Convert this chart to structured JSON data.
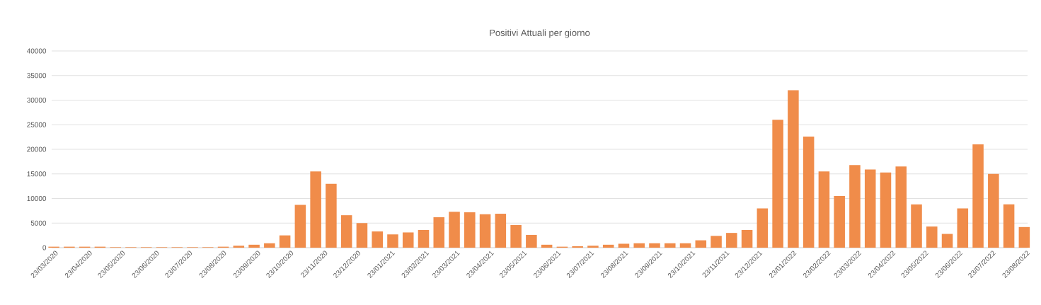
{
  "chart_data": {
    "type": "bar",
    "title": "Positivi Attuali per giorno",
    "color": "#f08c4a",
    "grid": "y",
    "x": [
      "2020-03-23",
      "2020-04-06",
      "2020-04-20",
      "2020-05-04",
      "2020-05-18",
      "2020-06-01",
      "2020-06-15",
      "2020-06-29",
      "2020-07-13",
      "2020-07-27",
      "2020-08-10",
      "2020-08-24",
      "2020-09-07",
      "2020-09-21",
      "2020-10-05",
      "2020-10-19",
      "2020-11-02",
      "2020-11-16",
      "2020-11-30",
      "2020-12-14",
      "2020-12-28",
      "2021-01-11",
      "2021-01-25",
      "2021-02-08",
      "2021-02-22",
      "2021-03-08",
      "2021-03-22",
      "2021-04-05",
      "2021-04-19",
      "2021-05-03",
      "2021-05-17",
      "2021-05-31",
      "2021-06-14",
      "2021-06-28",
      "2021-07-12",
      "2021-07-26",
      "2021-08-09",
      "2021-08-23",
      "2021-09-06",
      "2021-09-20",
      "2021-10-04",
      "2021-10-18",
      "2021-11-01",
      "2021-11-15",
      "2021-11-29",
      "2021-12-13",
      "2021-12-27",
      "2022-01-10",
      "2022-01-24",
      "2022-02-07",
      "2022-02-21",
      "2022-03-07",
      "2022-03-21",
      "2022-04-04",
      "2022-04-18",
      "2022-05-02",
      "2022-05-16",
      "2022-05-30",
      "2022-06-13",
      "2022-06-27",
      "2022-07-11",
      "2022-07-25",
      "2022-08-08",
      "2022-08-22"
    ],
    "values": [
      200,
      200,
      200,
      200,
      100,
      100,
      100,
      100,
      100,
      100,
      100,
      200,
      400,
      600,
      900,
      2500,
      8700,
      15500,
      13000,
      6600,
      5000,
      3300,
      2700,
      3100,
      3600,
      6200,
      7300,
      7200,
      6800,
      6900,
      4600,
      2600,
      600,
      200,
      300,
      400,
      600,
      800,
      900,
      900,
      900,
      900,
      1500,
      2400,
      3000,
      3600,
      8000,
      26000,
      32000,
      22600,
      15500,
      10500,
      16800,
      15900,
      15300,
      16500,
      8800,
      4300,
      2800,
      8000,
      21000,
      15000,
      8800,
      4200
    ],
    "xlim": [
      "2020-03-21",
      "2022-08-25"
    ],
    "ylim": [
      0,
      40000
    ],
    "yticks": [
      0,
      5000,
      10000,
      15000,
      20000,
      25000,
      30000,
      35000,
      40000
    ],
    "xticks": [
      {
        "value": "2020-03-23",
        "label": "23/03/2020"
      },
      {
        "value": "2020-04-23",
        "label": "23/04/2020"
      },
      {
        "value": "2020-05-23",
        "label": "23/05/2020"
      },
      {
        "value": "2020-06-23",
        "label": "23/06/2020"
      },
      {
        "value": "2020-07-23",
        "label": "23/07/2020"
      },
      {
        "value": "2020-08-23",
        "label": "23/08/2020"
      },
      {
        "value": "2020-09-23",
        "label": "23/09/2020"
      },
      {
        "value": "2020-10-23",
        "label": "23/10/2020"
      },
      {
        "value": "2020-11-23",
        "label": "23/11/2020"
      },
      {
        "value": "2020-12-23",
        "label": "23/12/2020"
      },
      {
        "value": "2021-01-23",
        "label": "23/01/2021"
      },
      {
        "value": "2021-02-23",
        "label": "23/02/2021"
      },
      {
        "value": "2021-03-23",
        "label": "23/03/2021"
      },
      {
        "value": "2021-04-23",
        "label": "23/04/2021"
      },
      {
        "value": "2021-05-23",
        "label": "23/05/2021"
      },
      {
        "value": "2021-06-23",
        "label": "23/06/2021"
      },
      {
        "value": "2021-07-23",
        "label": "23/07/2021"
      },
      {
        "value": "2021-08-23",
        "label": "23/08/2021"
      },
      {
        "value": "2021-09-23",
        "label": "23/09/2021"
      },
      {
        "value": "2021-10-23",
        "label": "23/10/2021"
      },
      {
        "value": "2021-11-23",
        "label": "23/11/2021"
      },
      {
        "value": "2021-12-23",
        "label": "23/12/2021"
      },
      {
        "value": "2022-01-23",
        "label": "23/01/2022"
      },
      {
        "value": "2022-02-23",
        "label": "23/02/2022"
      },
      {
        "value": "2022-03-23",
        "label": "23/03/2022"
      },
      {
        "value": "2022-04-23",
        "label": "23/04/2022"
      },
      {
        "value": "2022-05-23",
        "label": "23/05/2022"
      },
      {
        "value": "2022-06-23",
        "label": "23/06/2022"
      },
      {
        "value": "2022-07-23",
        "label": "23/07/2022"
      },
      {
        "value": "2022-08-23",
        "label": "23/08/2022"
      }
    ]
  }
}
